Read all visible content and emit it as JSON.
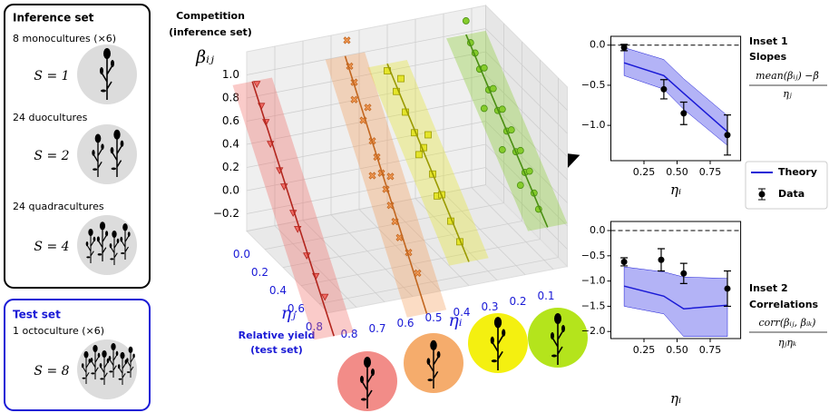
{
  "inference_set": {
    "title": "Inference set",
    "groups": [
      {
        "label": "8 monocultures (×6)",
        "richness": "S = 1"
      },
      {
        "label": "24 duocultures",
        "richness": "S = 2"
      },
      {
        "label": "24 quadracultures",
        "richness": "S = 4"
      }
    ]
  },
  "test_set": {
    "title": "Test set",
    "groups": [
      {
        "label": "1 octoculture (×6)",
        "richness": "S = 8"
      }
    ]
  },
  "chart_data": [
    {
      "type": "scatter3d",
      "title": [
        "Competition",
        "(inference set)"
      ],
      "zlabel": "βᵢⱼ",
      "ylabel": "ηⱼ",
      "ylabel_note": [
        "Relative yield",
        "(test set)"
      ],
      "xlabel": "ηᵢ",
      "xlim": [
        0.05,
        0.9
      ],
      "ylim": [
        0,
        0.9
      ],
      "zlim": [
        -0.35,
        1.2
      ],
      "xticks": [
        0.1,
        0.2,
        0.3,
        0.4,
        0.5,
        0.6,
        0.7,
        0.8
      ],
      "yticks": [
        {
          "value": 0,
          "label": "0.0"
        },
        0.2,
        0.4,
        0.6,
        0.8
      ],
      "zticks": [
        {
          "value": -0.2,
          "label": "−0.2"
        },
        {
          "value": 0,
          "label": "0.0"
        },
        0.2,
        0.4,
        0.6,
        0.8,
        {
          "value": 1,
          "label": "1.0"
        }
      ],
      "grid": true,
      "series": [
        {
          "color": "#f06a64",
          "line_color": "#b3261e",
          "marker": "triangle",
          "x": 0.88,
          "y": [
            0.05,
            0.1,
            0.15,
            0.2,
            0.3,
            0.35,
            0.45,
            0.5,
            0.6,
            0.7,
            0.8
          ],
          "values": [
            0.95,
            0.8,
            0.7,
            0.55,
            0.4,
            0.3,
            0.15,
            0.05,
            -0.1,
            -0.2,
            -0.3
          ]
        },
        {
          "color": "#f39a55",
          "line_color": "#c2661f",
          "marker": "cross",
          "x": 0.55,
          "y": [
            0.02,
            0.05,
            0.1,
            0.1,
            0.2,
            0.25,
            0.3,
            0.35,
            0.4,
            0.45,
            0.5,
            0.55,
            0.6,
            0.7,
            0.8,
            0.3,
            0.5
          ],
          "values": [
            1.15,
            0.95,
            0.85,
            0.7,
            0.6,
            0.75,
            0.5,
            0.4,
            0.3,
            0.2,
            0.1,
            0.0,
            -0.1,
            -0.15,
            -0.25,
            0.2,
            0.35
          ]
        },
        {
          "color": "#e4e42a",
          "line_color": "#9a9a00",
          "marker": "square",
          "x": 0.4,
          "y": [
            0.0,
            0.1,
            0.15,
            0.2,
            0.3,
            0.35,
            0.4,
            0.5,
            0.55,
            0.6,
            0.7,
            0.8,
            0.45
          ],
          "values": [
            0.8,
            0.7,
            0.85,
            0.6,
            0.5,
            0.35,
            0.45,
            0.3,
            0.15,
            0.2,
            0.05,
            -0.05,
            0.6
          ]
        },
        {
          "color": "#86cc2c",
          "line_color": "#4a8f12",
          "marker": "circle",
          "x": 0.12,
          "y": [
            0.0,
            0.05,
            0.1,
            0.15,
            0.2,
            0.25,
            0.3,
            0.35,
            0.4,
            0.45,
            0.5,
            0.55,
            0.6,
            0.65,
            0.7,
            0.75,
            0.8,
            0.2,
            0.4,
            0.6
          ],
          "values": [
            1.1,
            0.95,
            0.9,
            0.8,
            0.85,
            0.7,
            0.75,
            0.6,
            0.65,
            0.5,
            0.55,
            0.4,
            0.45,
            0.3,
            0.35,
            0.2,
            0.1,
            0.5,
            0.3,
            0.15
          ]
        }
      ]
    },
    {
      "type": "band_errorbar",
      "title": "Inset 1",
      "subtitle": "Slopes",
      "ylabel": {
        "numerator": "mean(βᵢⱼ) −β̄",
        "denominator": "ηⱼ"
      },
      "xlabel": "ηᵢ",
      "xlim": [
        0,
        0.98
      ],
      "ylim": [
        -1.44,
        0.11
      ],
      "xticks": [
        0.25,
        {
          "value": 0.5,
          "label": "0.50"
        },
        0.75
      ],
      "yticks": [
        {
          "value": 0,
          "label": "0.0"
        },
        {
          "value": -0.5,
          "label": "−0.5"
        },
        {
          "value": -1,
          "label": "−1.0"
        }
      ],
      "hline": 0,
      "legend": "right",
      "series": [
        {
          "name": "Theory",
          "color": "#1a1ad6",
          "band_color": "#8080f0",
          "x": [
            0.1,
            0.4,
            0.55,
            0.88
          ],
          "values": [
            -0.22,
            -0.38,
            -0.6,
            -1.08
          ],
          "lower": [
            -0.38,
            -0.55,
            -0.8,
            -1.25
          ],
          "upper": [
            -0.03,
            -0.18,
            -0.42,
            -0.88
          ]
        },
        {
          "name": "Data",
          "color": "#000000",
          "x": [
            0.1,
            0.4,
            0.55,
            0.88
          ],
          "values": [
            -0.03,
            -0.55,
            -0.85,
            -1.12
          ],
          "errors": [
            0.04,
            0.12,
            0.14,
            0.25
          ]
        }
      ]
    },
    {
      "type": "band_errorbar",
      "title": "Inset 2",
      "subtitle": "Correlations",
      "ylabel": {
        "numerator": "corr(βᵢⱼ, βᵢₖ)",
        "denominator": "ηⱼηₖ"
      },
      "xlabel": "ηᵢ",
      "xlim": [
        0,
        0.98
      ],
      "ylim": [
        -2.14,
        0.18
      ],
      "xticks": [
        0.25,
        {
          "value": 0.5,
          "label": "0.50"
        },
        0.75
      ],
      "yticks": [
        {
          "value": 0,
          "label": "0.0"
        },
        {
          "value": -0.5,
          "label": "−0.5"
        },
        {
          "value": -1,
          "label": "−1.0"
        },
        {
          "value": -1.5,
          "label": "−1.5"
        },
        {
          "value": -2,
          "label": "−2.0"
        }
      ],
      "hline": 0,
      "series": [
        {
          "color": "#1a1ad6",
          "band_color": "#8080f0",
          "x": [
            0.1,
            0.4,
            0.55,
            0.88
          ],
          "values": [
            -1.1,
            -1.3,
            -1.55,
            -1.48
          ],
          "lower": [
            -1.5,
            -1.65,
            -2.1,
            -2.1
          ],
          "upper": [
            -0.72,
            -0.82,
            -0.92,
            -0.95
          ]
        },
        {
          "color": "#000000",
          "x": [
            0.1,
            0.38,
            0.55,
            0.88
          ],
          "values": [
            -0.62,
            -0.58,
            -0.85,
            -1.15
          ],
          "errors": [
            0.08,
            0.22,
            0.2,
            0.35
          ]
        }
      ]
    }
  ]
}
